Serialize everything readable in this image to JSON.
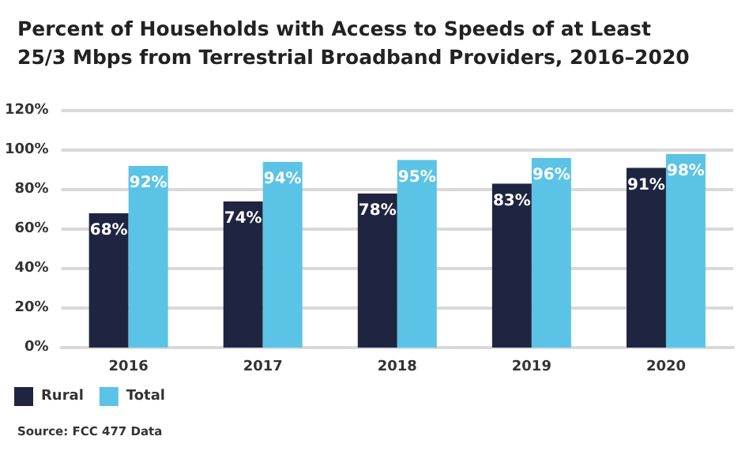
{
  "chart_data": {
    "type": "bar",
    "title": "Percent of Households with Access to Speeds of at Least\n25/3 Mbps from Terrestrial Broadband Providers, 2016–2020",
    "categories": [
      "2016",
      "2017",
      "2018",
      "2019",
      "2020"
    ],
    "series": [
      {
        "name": "Rural",
        "color": "#1f2540",
        "values": [
          68,
          74,
          78,
          83,
          91
        ],
        "value_labels": [
          "68%",
          "74%",
          "78%",
          "83%",
          "91%"
        ]
      },
      {
        "name": "Total",
        "color": "#5bc4e6",
        "values": [
          92,
          94,
          95,
          96,
          98
        ],
        "value_labels": [
          "92%",
          "94%",
          "95%",
          "96%",
          "98%"
        ]
      }
    ],
    "ylim": [
      0,
      120
    ],
    "yticks": [
      {
        "value": 0,
        "label": "0%"
      },
      {
        "value": 20,
        "label": "20%"
      },
      {
        "value": 40,
        "label": "40%"
      },
      {
        "value": 60,
        "label": "60%"
      },
      {
        "value": 80,
        "label": "80%"
      },
      {
        "value": 100,
        "label": "100%"
      },
      {
        "value": 120,
        "label": "120%"
      }
    ],
    "grid": "y",
    "legend": "bottom left",
    "annotations": [
      "Source: FCC 477 Data"
    ]
  }
}
